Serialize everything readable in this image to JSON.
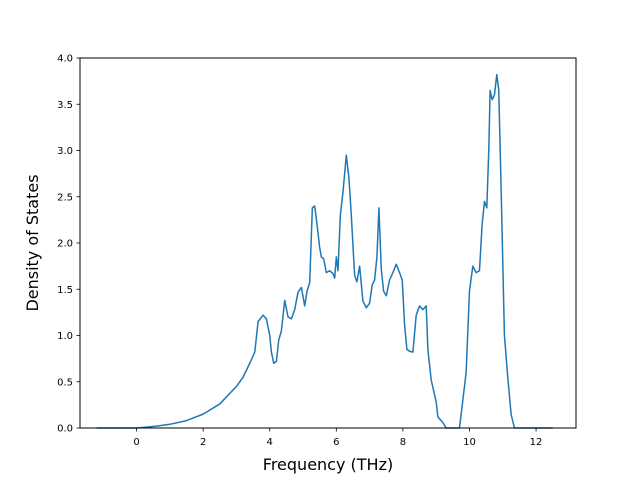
{
  "chart_data": {
    "type": "line",
    "title": "",
    "xlabel": "Frequency (THz)",
    "ylabel": "Density of States",
    "xlim": [
      -1.7,
      13.2
    ],
    "ylim": [
      0.0,
      4.0
    ],
    "xticks": [
      0,
      2,
      4,
      6,
      8,
      10,
      12
    ],
    "yticks": [
      0.0,
      0.5,
      1.0,
      1.5,
      2.0,
      2.5,
      3.0,
      3.5,
      4.0
    ],
    "xtick_labels": [
      "0",
      "2",
      "4",
      "6",
      "8",
      "10",
      "12"
    ],
    "ytick_labels": [
      "0.0",
      "0.5",
      "1.0",
      "1.5",
      "2.0",
      "2.5",
      "3.0",
      "3.5",
      "4.0"
    ],
    "grid": false,
    "line_color": "#1f77b4",
    "series": [
      {
        "x": [
          -1.2,
          -0.6,
          0.0,
          0.3,
          0.6,
          1.0,
          1.5,
          2.0,
          2.5,
          3.0,
          3.2,
          3.4,
          3.55,
          3.65,
          3.8,
          3.9,
          4.0,
          4.05,
          4.12,
          4.2,
          4.27,
          4.35,
          4.45,
          4.55,
          4.65,
          4.75,
          4.85,
          4.95,
          5.05,
          5.12,
          5.2,
          5.28,
          5.35,
          5.42,
          5.5,
          5.55,
          5.62,
          5.7,
          5.8,
          5.9,
          5.95,
          6.0,
          6.05,
          6.12,
          6.2,
          6.3,
          6.38,
          6.45,
          6.55,
          6.62,
          6.7,
          6.8,
          6.9,
          7.0,
          7.08,
          7.15,
          7.22,
          7.28,
          7.35,
          7.42,
          7.5,
          7.6,
          7.7,
          7.8,
          7.9,
          7.98,
          8.05,
          8.12,
          8.2,
          8.3,
          8.4,
          8.5,
          8.6,
          8.7,
          8.75,
          8.85,
          9.0,
          9.05,
          9.2,
          9.3,
          9.35,
          9.5,
          9.7,
          9.8,
          9.9,
          10.0,
          10.1,
          10.2,
          10.3,
          10.38,
          10.45,
          10.52,
          10.58,
          10.62,
          10.68,
          10.75,
          10.82,
          10.88,
          10.95,
          11.05,
          11.15,
          11.25,
          11.35,
          11.5,
          11.7,
          11.9,
          12.2,
          12.5
        ],
        "y": [
          0.0,
          0.0,
          0.0,
          0.01,
          0.02,
          0.04,
          0.08,
          0.15,
          0.26,
          0.45,
          0.55,
          0.7,
          0.82,
          1.15,
          1.22,
          1.18,
          1.0,
          0.82,
          0.7,
          0.72,
          0.95,
          1.05,
          1.38,
          1.2,
          1.18,
          1.28,
          1.47,
          1.52,
          1.32,
          1.48,
          1.57,
          2.38,
          2.4,
          2.2,
          1.95,
          1.85,
          1.83,
          1.68,
          1.7,
          1.67,
          1.62,
          1.85,
          1.7,
          2.3,
          2.55,
          2.95,
          2.7,
          2.3,
          1.65,
          1.58,
          1.75,
          1.37,
          1.3,
          1.35,
          1.55,
          1.6,
          1.85,
          2.38,
          1.72,
          1.48,
          1.43,
          1.6,
          1.68,
          1.77,
          1.68,
          1.6,
          1.12,
          0.85,
          0.83,
          0.82,
          1.22,
          1.32,
          1.28,
          1.32,
          0.85,
          0.52,
          0.28,
          0.12,
          0.06,
          0.0,
          0.0,
          0.0,
          0.0,
          0.3,
          0.6,
          1.48,
          1.75,
          1.68,
          1.7,
          2.2,
          2.45,
          2.38,
          3.0,
          3.65,
          3.55,
          3.6,
          3.82,
          3.65,
          2.6,
          1.0,
          0.55,
          0.15,
          0.0,
          0.0,
          0.0,
          0.0,
          0.0,
          0.0
        ]
      }
    ]
  }
}
